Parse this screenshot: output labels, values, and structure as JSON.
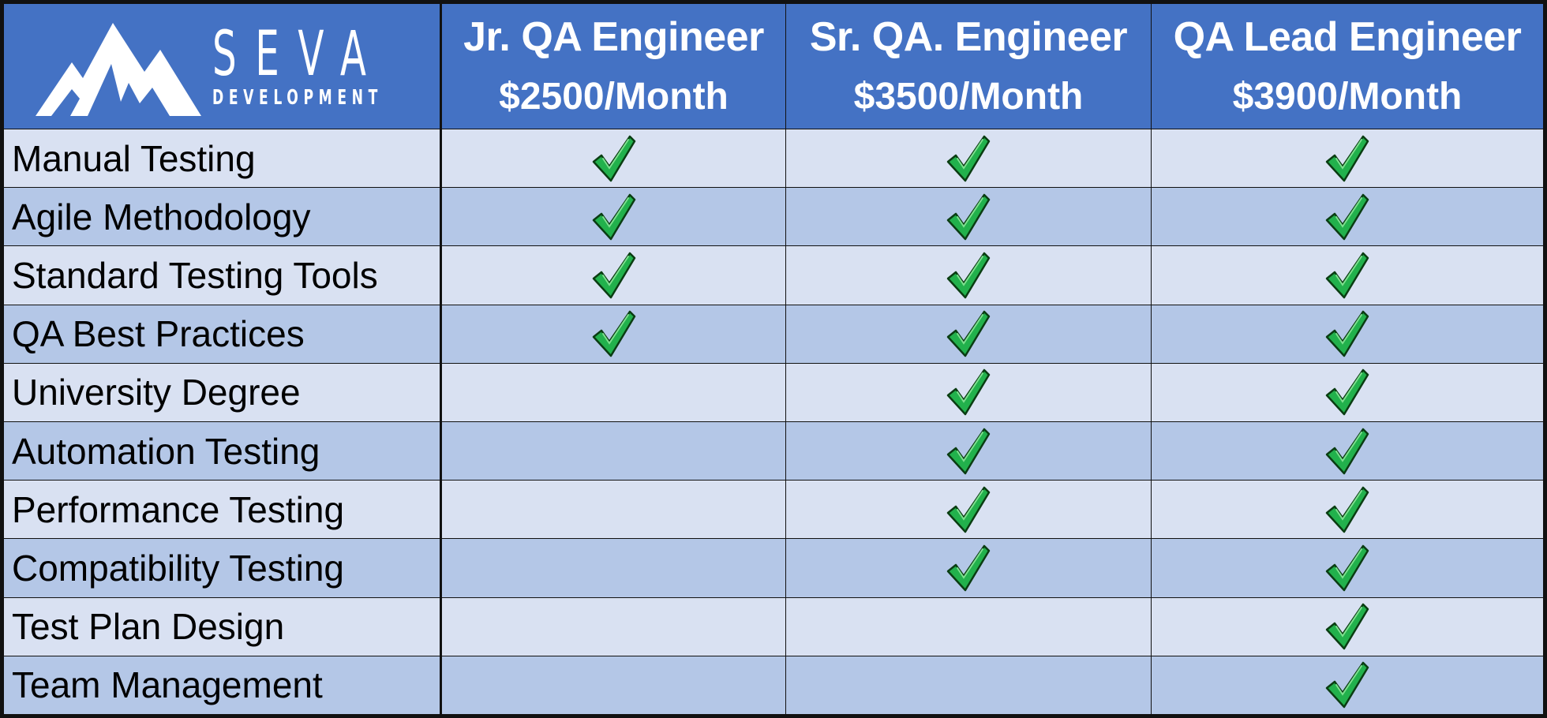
{
  "logo": {
    "name": "SEVA",
    "subtitle": "DEVELOPMENT",
    "icon": "mountain-logo-icon"
  },
  "colors": {
    "header_bg": "#4472c4",
    "row_light": "#d9e1f2",
    "row_dark": "#b4c7e7",
    "check_green": "#22b14c"
  },
  "columns": [
    {
      "title": "Jr. QA Engineer",
      "price": "$2500/Month"
    },
    {
      "title": "Sr. QA. Engineer",
      "price": "$3500/Month"
    },
    {
      "title": "QA Lead Engineer",
      "price": "$3900/Month"
    }
  ],
  "rows": [
    {
      "feature": "Manual Testing",
      "marks": [
        true,
        true,
        true
      ]
    },
    {
      "feature": "Agile Methodology",
      "marks": [
        true,
        true,
        true
      ]
    },
    {
      "feature": "Standard Testing Tools",
      "marks": [
        true,
        true,
        true
      ]
    },
    {
      "feature": "QA Best Practices",
      "marks": [
        true,
        true,
        true
      ]
    },
    {
      "feature": "University Degree",
      "marks": [
        false,
        true,
        true
      ]
    },
    {
      "feature": "Automation Testing",
      "marks": [
        false,
        true,
        true
      ]
    },
    {
      "feature": "Performance Testing",
      "marks": [
        false,
        true,
        true
      ]
    },
    {
      "feature": "Compatibility Testing",
      "marks": [
        false,
        true,
        true
      ]
    },
    {
      "feature": "Test Plan Design",
      "marks": [
        false,
        false,
        true
      ]
    },
    {
      "feature": "Team Management",
      "marks": [
        false,
        false,
        true
      ]
    }
  ]
}
